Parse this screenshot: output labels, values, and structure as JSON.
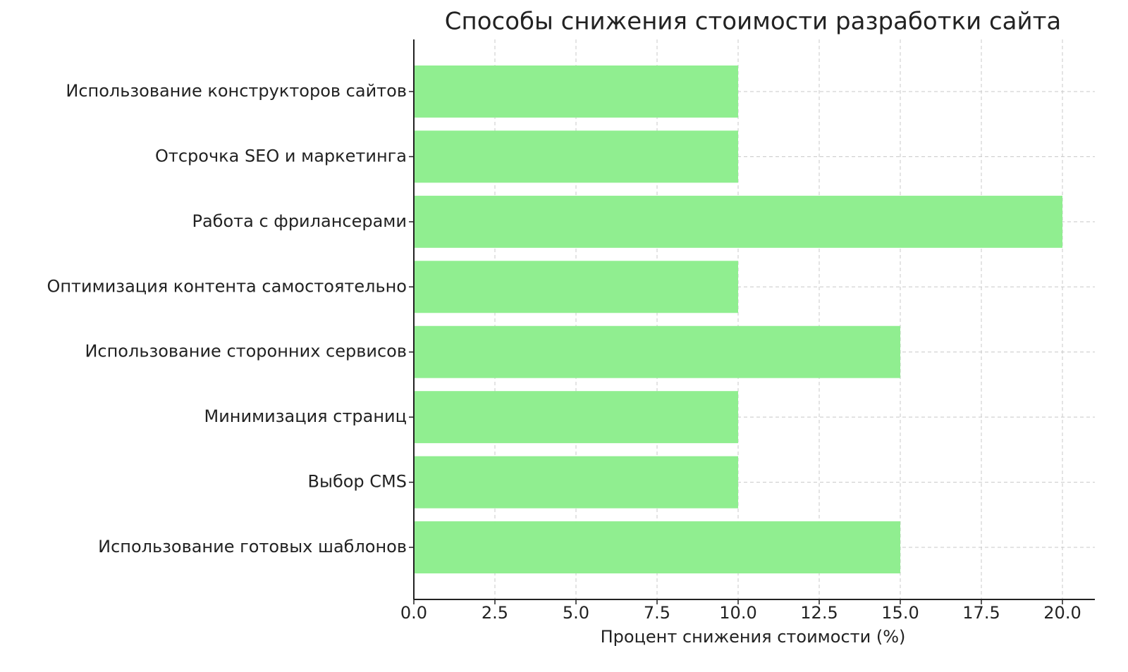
{
  "chart_data": {
    "type": "barh",
    "title": "Способы снижения стоимости разработки сайта",
    "xlabel": "Процент снижения стоимости (%)",
    "categories": [
      "Использование готовых шаблонов",
      "Выбор CMS",
      "Минимизация страниц",
      "Использование сторонних сервисов",
      "Оптимизация контента самостоятельно",
      "Работа с фрилансерами",
      "Отсрочка SEO и маркетинга",
      "Использование конструкторов сайтов"
    ],
    "values": [
      15,
      10,
      10,
      15,
      10,
      20,
      10,
      10
    ],
    "color": "#90ee90",
    "xlim": [
      0,
      21
    ],
    "xticks": [
      {
        "value": 0,
        "label": "0.0"
      },
      2.5,
      {
        "value": 5,
        "label": "5.0"
      },
      7.5,
      {
        "value": 10,
        "label": "10.0"
      },
      12.5,
      {
        "value": 15,
        "label": "15.0"
      },
      17.5,
      {
        "value": 20,
        "label": "20.0"
      }
    ],
    "grid": true
  }
}
